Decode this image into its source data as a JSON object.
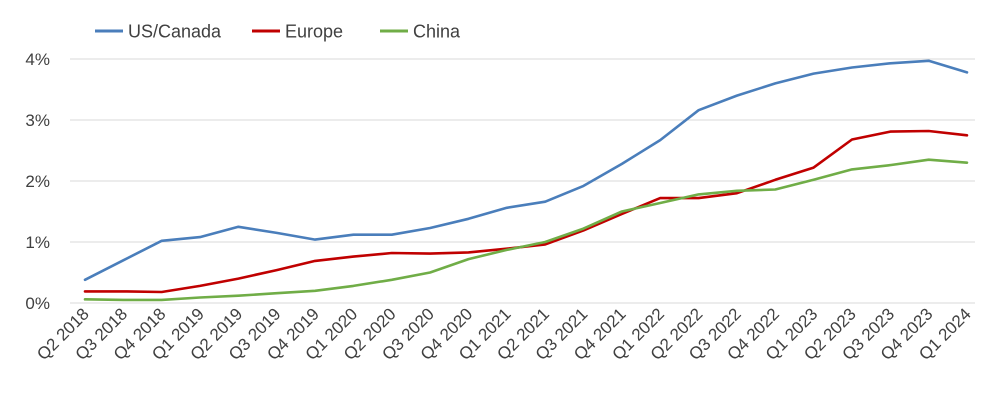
{
  "chart_data": {
    "type": "line",
    "title": "",
    "xlabel": "",
    "ylabel": "",
    "categories": [
      "Q2 2018",
      "Q3 2018",
      "Q4 2018",
      "Q1 2019",
      "Q2 2019",
      "Q3 2019",
      "Q4 2019",
      "Q1 2020",
      "Q2 2020",
      "Q3 2020",
      "Q4 2020",
      "Q1 2021",
      "Q2 2021",
      "Q3 2021",
      "Q4 2021",
      "Q1 2022",
      "Q2 2022",
      "Q3 2022",
      "Q4 2022",
      "Q1 2023",
      "Q2 2023",
      "Q3 2023",
      "Q4 2023",
      "Q1 2024"
    ],
    "ylim": [
      0,
      4
    ],
    "yticks": [
      0,
      1,
      2,
      3,
      4
    ],
    "ytick_labels": [
      "0%",
      "1%",
      "2%",
      "3%",
      "4%"
    ],
    "grid": "horizontal",
    "legend_position": "top-left",
    "series": [
      {
        "name": "US/Canada",
        "color": "#4a7ebb",
        "values": [
          0.38,
          0.7,
          1.02,
          1.08,
          1.25,
          1.15,
          1.04,
          1.12,
          1.12,
          1.23,
          1.38,
          1.56,
          1.66,
          1.92,
          2.28,
          2.67,
          3.16,
          3.4,
          3.6,
          3.76,
          3.86,
          3.93,
          3.97,
          3.78
        ]
      },
      {
        "name": "Europe",
        "color": "#c00000",
        "values": [
          0.19,
          0.19,
          0.18,
          0.28,
          0.4,
          0.54,
          0.69,
          0.76,
          0.82,
          0.81,
          0.83,
          0.89,
          0.96,
          1.19,
          1.46,
          1.72,
          1.72,
          1.8,
          2.02,
          2.22,
          2.68,
          2.81,
          2.82,
          2.75
        ]
      },
      {
        "name": "China",
        "color": "#70ad47",
        "values": [
          0.06,
          0.05,
          0.05,
          0.09,
          0.12,
          0.16,
          0.2,
          0.28,
          0.38,
          0.5,
          0.72,
          0.87,
          1.0,
          1.22,
          1.5,
          1.64,
          1.78,
          1.84,
          1.86,
          2.02,
          2.19,
          2.26,
          2.35,
          2.3
        ]
      }
    ]
  }
}
